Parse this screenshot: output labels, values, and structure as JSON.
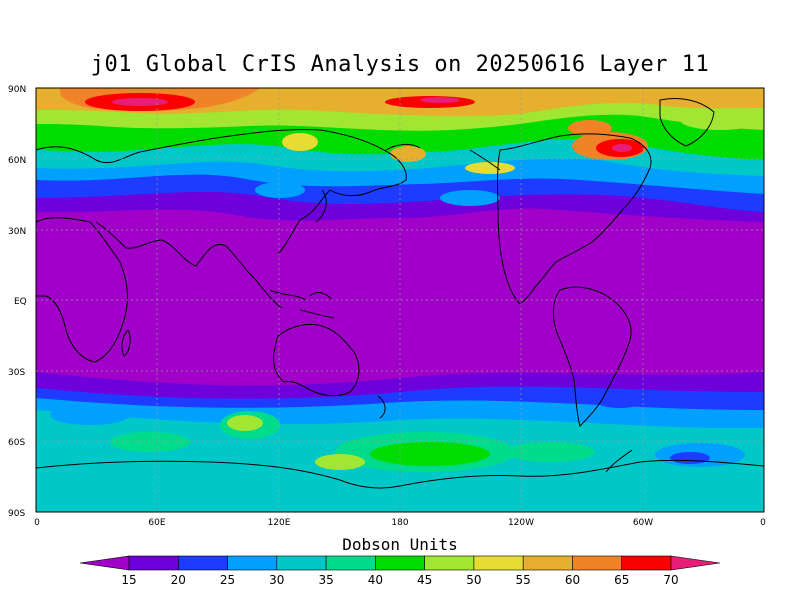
{
  "title": "j01 Global CrIS Analysis on 20250616 Layer 11",
  "colorbar": {
    "title": "Dobson Units",
    "levels": [
      "15",
      "20",
      "25",
      "30",
      "35",
      "40",
      "45",
      "50",
      "55",
      "60",
      "65",
      "70"
    ],
    "colors": [
      "#a000c8",
      "#6e00dc",
      "#1e3cff",
      "#00a0ff",
      "#00c8c8",
      "#00dc8c",
      "#00dc00",
      "#a0e632",
      "#e6dc32",
      "#e6af2d",
      "#f08228",
      "#fa0000",
      "#e61e78"
    ]
  },
  "map": {
    "lat_ticks": [
      "90N",
      "60N",
      "30N",
      "EQ",
      "30S",
      "60S",
      "90S"
    ],
    "lon_ticks": [
      "0",
      "60E",
      "120E",
      "180",
      "120W",
      "60W",
      "0"
    ],
    "grid": true,
    "projection": "cylindrical equidistant"
  },
  "chart_data": {
    "type": "heatmap",
    "title": "j01 Global CrIS Analysis on 20250616 Layer 11",
    "units": "Dobson Units",
    "x_range": [
      "0",
      "0"
    ],
    "y_range": [
      "90S",
      "90N"
    ],
    "contour_levels": [
      15,
      20,
      25,
      30,
      35,
      40,
      45,
      50,
      55,
      60,
      65,
      70
    ]
  }
}
